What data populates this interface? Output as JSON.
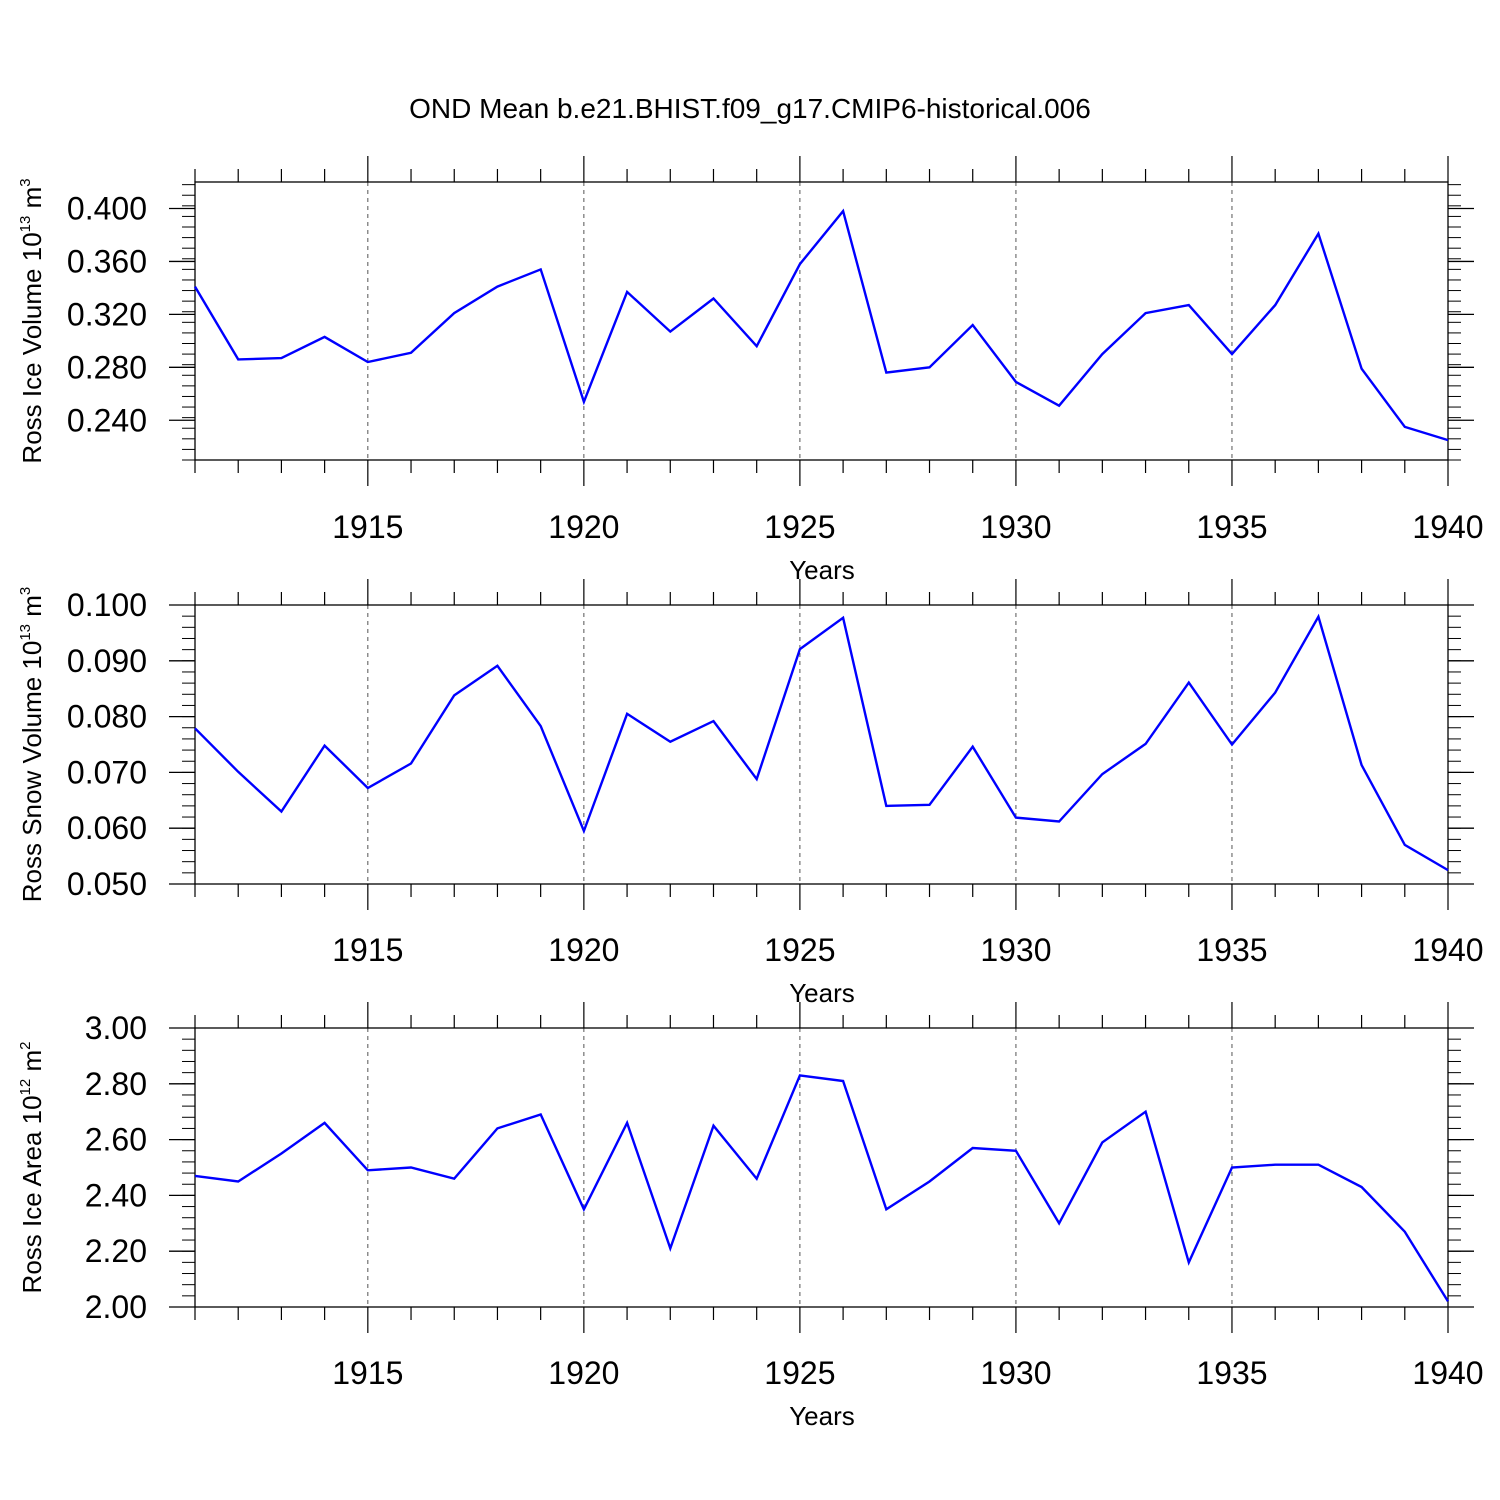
{
  "title": "OND Mean b.e21.BHIST.f09_g17.CMIP6-historical.006",
  "colors": {
    "line": "#0000ff",
    "axis": "#000000",
    "grid": "#555555"
  },
  "chart_data": [
    {
      "type": "line",
      "ylabel_main": "Ross Ice Volume 10",
      "ylabel_exp": "13",
      "ylabel_unit": " m",
      "ylabel_unit_exp": "3",
      "xlabel": "Years",
      "xlim": [
        1911,
        1940
      ],
      "ylim": [
        0.21,
        0.42
      ],
      "yticks": [
        0.24,
        0.28,
        0.32,
        0.36,
        0.4
      ],
      "ytick_labels": [
        "0.240",
        "0.280",
        "0.320",
        "0.360",
        "0.400"
      ],
      "ytick_minor_step": 0.008,
      "xticks": [
        1915,
        1920,
        1925,
        1930,
        1935,
        1940
      ],
      "xtick_labels": [
        "1915",
        "1920",
        "1925",
        "1930",
        "1935",
        "1940"
      ],
      "x": [
        1911,
        1912,
        1913,
        1914,
        1915,
        1916,
        1917,
        1918,
        1919,
        1920,
        1921,
        1922,
        1923,
        1924,
        1925,
        1926,
        1927,
        1928,
        1929,
        1930,
        1931,
        1932,
        1933,
        1934,
        1935,
        1936,
        1937,
        1938,
        1939,
        1940
      ],
      "series": [
        {
          "name": "Ross Ice Volume",
          "values": [
            0.341,
            0.286,
            0.287,
            0.303,
            0.284,
            0.291,
            0.321,
            0.341,
            0.354,
            0.254,
            0.337,
            0.307,
            0.332,
            0.296,
            0.358,
            0.398,
            0.276,
            0.28,
            0.312,
            0.269,
            0.251,
            0.29,
            0.321,
            0.327,
            0.29,
            0.327,
            0.381,
            0.279,
            0.235,
            0.225
          ]
        }
      ],
      "grid": "vertical dashed at major x ticks"
    },
    {
      "type": "line",
      "ylabel_main": "Ross Snow Volume 10",
      "ylabel_exp": "13",
      "ylabel_unit": " m",
      "ylabel_unit_exp": "3",
      "xlabel": "Years",
      "xlim": [
        1911,
        1940
      ],
      "ylim": [
        0.05,
        0.1
      ],
      "yticks": [
        0.05,
        0.06,
        0.07,
        0.08,
        0.09,
        0.1
      ],
      "ytick_labels": [
        "0.050",
        "0.060",
        "0.070",
        "0.080",
        "0.090",
        "0.100"
      ],
      "ytick_minor_step": 0.002,
      "xticks": [
        1915,
        1920,
        1925,
        1930,
        1935,
        1940
      ],
      "xtick_labels": [
        "1915",
        "1920",
        "1925",
        "1930",
        "1935",
        "1940"
      ],
      "x": [
        1911,
        1912,
        1913,
        1914,
        1915,
        1916,
        1917,
        1918,
        1919,
        1920,
        1921,
        1922,
        1923,
        1924,
        1925,
        1926,
        1927,
        1928,
        1929,
        1930,
        1931,
        1932,
        1933,
        1934,
        1935,
        1936,
        1937,
        1938,
        1939,
        1940
      ],
      "series": [
        {
          "name": "Ross Snow Volume",
          "values": [
            0.0779,
            0.0701,
            0.063,
            0.0748,
            0.0672,
            0.0716,
            0.0838,
            0.0891,
            0.0783,
            0.0595,
            0.0805,
            0.0755,
            0.0792,
            0.0688,
            0.0921,
            0.0977,
            0.064,
            0.0642,
            0.0746,
            0.0619,
            0.0612,
            0.0697,
            0.0751,
            0.0861,
            0.075,
            0.0843,
            0.0979,
            0.0713,
            0.057,
            0.0525
          ]
        }
      ],
      "grid": "vertical dashed at major x ticks"
    },
    {
      "type": "line",
      "ylabel_main": "Ross Ice Area 10",
      "ylabel_exp": "12",
      "ylabel_unit": " m",
      "ylabel_unit_exp": "2",
      "xlabel": "Years",
      "xlim": [
        1911,
        1940
      ],
      "ylim": [
        2.0,
        3.0
      ],
      "yticks": [
        2.0,
        2.2,
        2.4,
        2.6,
        2.8,
        3.0
      ],
      "ytick_labels": [
        "2.00",
        "2.20",
        "2.40",
        "2.60",
        "2.80",
        "3.00"
      ],
      "ytick_minor_step": 0.04,
      "xticks": [
        1915,
        1920,
        1925,
        1930,
        1935,
        1940
      ],
      "xtick_labels": [
        "1915",
        "1920",
        "1925",
        "1930",
        "1935",
        "1940"
      ],
      "x": [
        1911,
        1912,
        1913,
        1914,
        1915,
        1916,
        1917,
        1918,
        1919,
        1920,
        1921,
        1922,
        1923,
        1924,
        1925,
        1926,
        1927,
        1928,
        1929,
        1930,
        1931,
        1932,
        1933,
        1934,
        1935,
        1936,
        1937,
        1938,
        1939,
        1940
      ],
      "series": [
        {
          "name": "Ross Ice Area",
          "values": [
            2.47,
            2.45,
            2.55,
            2.66,
            2.49,
            2.5,
            2.46,
            2.64,
            2.69,
            2.35,
            2.66,
            2.21,
            2.65,
            2.46,
            2.83,
            2.81,
            2.35,
            2.45,
            2.57,
            2.56,
            2.3,
            2.59,
            2.7,
            2.16,
            2.5,
            2.51,
            2.51,
            2.43,
            2.27,
            2.02
          ]
        }
      ],
      "grid": "vertical dashed at major x ticks"
    }
  ]
}
